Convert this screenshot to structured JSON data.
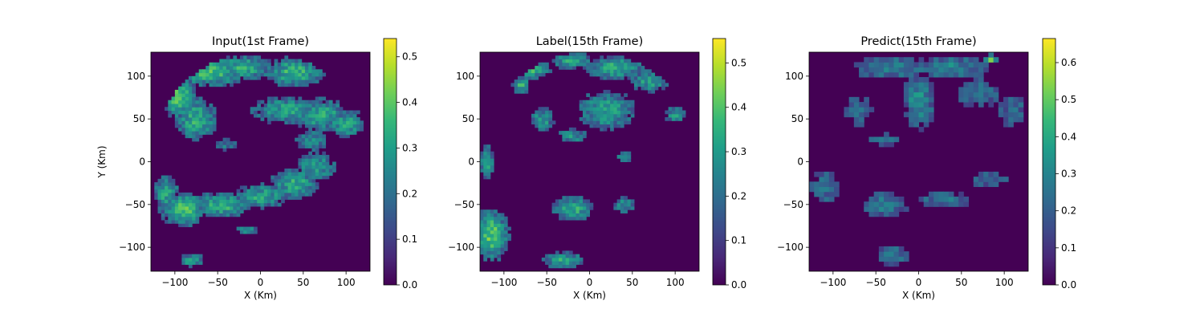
{
  "figure": {
    "colormap": "viridis",
    "viridis_stops": [
      "#440154",
      "#482878",
      "#3e4989",
      "#31688e",
      "#26828e",
      "#1f9e89",
      "#35b779",
      "#6ece58",
      "#b5de2b",
      "#fde725"
    ],
    "background": "#ffffff"
  },
  "chart_data": [
    {
      "type": "heatmap",
      "title": "Input(1st Frame)",
      "xlabel": "X (Km)",
      "ylabel": "Y (Km)",
      "xlim": [
        -128,
        128
      ],
      "ylim": [
        -128,
        128
      ],
      "xticks": [
        "−100",
        "−50",
        "0",
        "50",
        "100"
      ],
      "xtick_values": [
        -100,
        -50,
        0,
        50,
        100
      ],
      "yticks": [
        "−100",
        "−50",
        "0",
        "50",
        "100"
      ],
      "ytick_values": [
        -100,
        -50,
        0,
        50,
        100
      ],
      "colorbar": {
        "range": [
          0,
          0.54
        ],
        "ticks": [
          "0.0",
          "0.1",
          "0.2",
          "0.3",
          "0.4",
          "0.5"
        ],
        "tick_values": [
          0,
          0.1,
          0.2,
          0.3,
          0.4,
          0.5
        ]
      },
      "field": {
        "description_of_pattern": "spiral rain band",
        "blobs": [
          [
            -60,
            105,
            45,
            18,
            0.36
          ],
          [
            -20,
            110,
            40,
            15,
            0.33
          ],
          [
            40,
            105,
            35,
            18,
            0.35
          ],
          [
            -95,
            75,
            20,
            25,
            0.38
          ],
          [
            -75,
            50,
            25,
            25,
            0.34
          ],
          [
            30,
            60,
            45,
            18,
            0.3
          ],
          [
            70,
            55,
            35,
            20,
            0.32
          ],
          [
            100,
            45,
            25,
            18,
            0.3
          ],
          [
            60,
            25,
            25,
            15,
            0.24
          ],
          [
            65,
            -5,
            25,
            18,
            0.3
          ],
          [
            40,
            -25,
            30,
            18,
            0.33
          ],
          [
            0,
            -40,
            35,
            15,
            0.31
          ],
          [
            -45,
            -50,
            35,
            15,
            0.35
          ],
          [
            -90,
            -55,
            30,
            20,
            0.36
          ],
          [
            -110,
            -35,
            15,
            20,
            0.33
          ],
          [
            -80,
            -115,
            15,
            8,
            0.3
          ],
          [
            -15,
            -80,
            15,
            6,
            0.28
          ],
          [
            -40,
            20,
            15,
            10,
            0.22
          ]
        ]
      }
    },
    {
      "type": "heatmap",
      "title": "Label(15th Frame)",
      "xlabel": "X (Km)",
      "ylabel": "",
      "xlim": [
        -128,
        128
      ],
      "ylim": [
        -128,
        128
      ],
      "xticks": [
        "−100",
        "−50",
        "0",
        "50",
        "100"
      ],
      "xtick_values": [
        -100,
        -50,
        0,
        50,
        100
      ],
      "yticks": [
        "−100",
        "−50",
        "0",
        "50",
        "100"
      ],
      "ytick_values": [
        -100,
        -50,
        0,
        50,
        100
      ],
      "colorbar": {
        "range": [
          0,
          0.555
        ],
        "ticks": [
          "0.0",
          "0.1",
          "0.2",
          "0.3",
          "0.4",
          "0.5"
        ],
        "tick_values": [
          0,
          0.1,
          0.2,
          0.3,
          0.4,
          0.5
        ]
      },
      "field": {
        "description_of_pattern": "scattered cells",
        "blobs": [
          [
            -70,
            110,
            25,
            12,
            0.38
          ],
          [
            -20,
            118,
            25,
            10,
            0.34
          ],
          [
            30,
            110,
            35,
            15,
            0.33
          ],
          [
            70,
            95,
            25,
            15,
            0.3
          ],
          [
            20,
            60,
            35,
            25,
            0.32
          ],
          [
            -55,
            50,
            15,
            15,
            0.3
          ],
          [
            100,
            55,
            15,
            10,
            0.28
          ],
          [
            -20,
            30,
            20,
            10,
            0.27
          ],
          [
            40,
            5,
            12,
            10,
            0.26
          ],
          [
            -20,
            -55,
            25,
            15,
            0.34
          ],
          [
            -120,
            0,
            8,
            20,
            0.33
          ],
          [
            -115,
            -85,
            20,
            30,
            0.4
          ],
          [
            -30,
            -115,
            25,
            10,
            0.34
          ],
          [
            40,
            -50,
            15,
            10,
            0.28
          ],
          [
            -80,
            90,
            10,
            10,
            0.36
          ]
        ]
      }
    },
    {
      "type": "heatmap",
      "title": "Predict(15th Frame)",
      "xlabel": "X (Km)",
      "ylabel": "",
      "xlim": [
        -128,
        128
      ],
      "ylim": [
        -128,
        128
      ],
      "xticks": [
        "−100",
        "−50",
        "0",
        "50",
        "100"
      ],
      "xtick_values": [
        -100,
        -50,
        0,
        50,
        100
      ],
      "yticks": [
        "−100",
        "−50",
        "0",
        "50",
        "100"
      ],
      "ytick_values": [
        -100,
        -50,
        0,
        50,
        100
      ],
      "colorbar": {
        "range": [
          0,
          0.665
        ],
        "ticks": [
          "0.0",
          "0.1",
          "0.2",
          "0.3",
          "0.4",
          "0.5",
          "0.6"
        ],
        "tick_values": [
          0,
          0.1,
          0.2,
          0.3,
          0.4,
          0.5,
          0.6
        ]
      },
      "field": {
        "description_of_pattern": "blurred blocky prediction",
        "blobs": [
          [
            -30,
            110,
            50,
            15,
            0.3
          ],
          [
            40,
            110,
            45,
            15,
            0.3
          ],
          [
            0,
            70,
            20,
            35,
            0.32
          ],
          [
            70,
            80,
            30,
            20,
            0.26
          ],
          [
            110,
            60,
            20,
            25,
            0.24
          ],
          [
            -70,
            60,
            25,
            25,
            0.22
          ],
          [
            -40,
            25,
            25,
            10,
            0.22
          ],
          [
            -110,
            -30,
            20,
            25,
            0.24
          ],
          [
            -40,
            -50,
            30,
            15,
            0.3
          ],
          [
            30,
            -45,
            35,
            12,
            0.26
          ],
          [
            -30,
            -110,
            20,
            15,
            0.28
          ],
          [
            80,
            -20,
            30,
            10,
            0.24
          ],
          [
            85,
            120,
            8,
            5,
            0.5
          ]
        ]
      }
    }
  ]
}
